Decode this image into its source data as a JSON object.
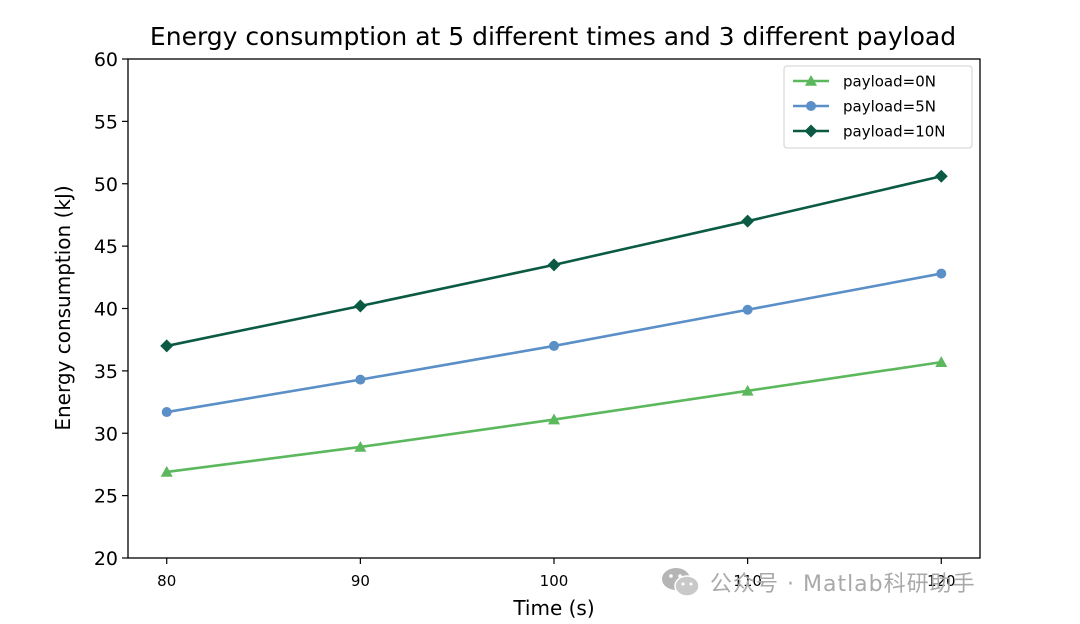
{
  "chart_data": {
    "type": "line",
    "title": "Energy consumption at 5 different times and 3 different payload",
    "xlabel": "Time (s)",
    "ylabel": "Energy consumption (kJ)",
    "x": [
      80,
      90,
      100,
      110,
      120
    ],
    "xticks": [
      "80",
      "90",
      "100",
      "110",
      "120"
    ],
    "yticks": [
      "20",
      "25",
      "30",
      "35",
      "40",
      "45",
      "50",
      "55",
      "60"
    ],
    "xlim": [
      78,
      122
    ],
    "ylim": [
      20,
      60
    ],
    "grid": false,
    "legend_position": "top-right",
    "series": [
      {
        "name": "payload=0N",
        "values": [
          26.9,
          28.9,
          31.1,
          33.4,
          35.7
        ],
        "color": "#5cb85c",
        "marker": "triangle"
      },
      {
        "name": "payload=5N",
        "values": [
          31.7,
          34.3,
          37.0,
          39.9,
          42.8
        ],
        "color": "#5b8fc7",
        "marker": "circle"
      },
      {
        "name": "payload=10N",
        "values": [
          37.0,
          40.2,
          43.5,
          47.0,
          50.6
        ],
        "color": "#0b5a44",
        "marker": "diamond"
      }
    ]
  },
  "watermark": {
    "text": "公众号 · Matlab科研助手",
    "icon": "wechat-icon"
  }
}
